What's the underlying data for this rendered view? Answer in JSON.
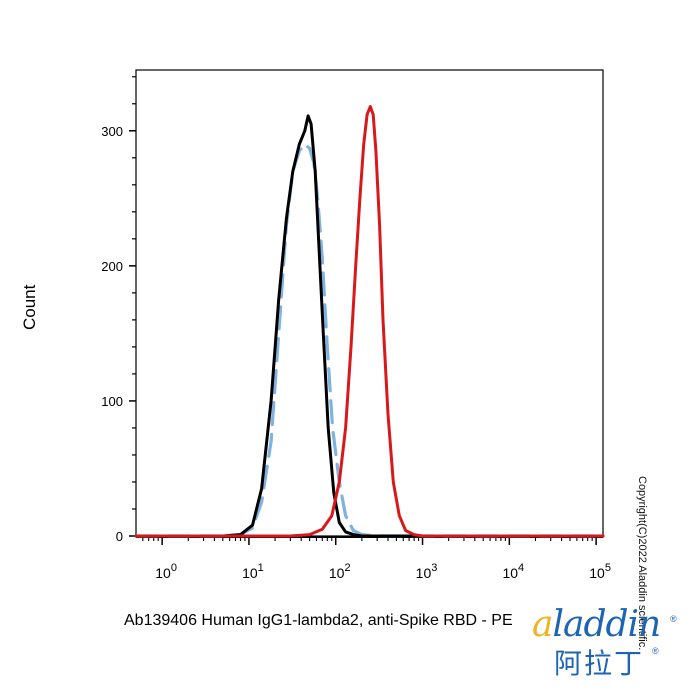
{
  "chart_data": {
    "type": "line",
    "title": "",
    "xlabel": "Ab139406 Human IgG1-lambda2, anti-Spike RBD - PE",
    "ylabel": "Count",
    "x_scale": "log",
    "xlim": [
      0.5,
      120000
    ],
    "ylim": [
      0,
      345
    ],
    "x_ticks": [
      {
        "value": 1,
        "label": "10",
        "exp": "0"
      },
      {
        "value": 10,
        "label": "10",
        "exp": "1"
      },
      {
        "value": 100,
        "label": "10",
        "exp": "2"
      },
      {
        "value": 1000,
        "label": "10",
        "exp": "3"
      },
      {
        "value": 10000,
        "label": "10",
        "exp": "4"
      },
      {
        "value": 100000,
        "label": "10",
        "exp": "5"
      }
    ],
    "y_ticks": [
      0,
      100,
      200,
      300
    ],
    "grid": false,
    "legend": "none",
    "series": [
      {
        "style": "dashed",
        "color": "#7fb2e0",
        "x": [
          0.5,
          5,
          8,
          11,
          14,
          18,
          22,
          27,
          32,
          38,
          44,
          50,
          56,
          62,
          70,
          80,
          92,
          110,
          130,
          160,
          200,
          300,
          1000,
          120000
        ],
        "y": [
          0,
          0,
          1,
          6,
          25,
          70,
          150,
          230,
          270,
          285,
          290,
          287,
          276,
          250,
          205,
          140,
          80,
          40,
          15,
          4,
          1,
          0,
          0,
          0
        ]
      },
      {
        "style": "solid",
        "color": "#000000",
        "x": [
          0.5,
          5,
          8,
          11,
          14,
          18,
          22,
          27,
          32,
          38,
          44,
          48,
          52,
          58,
          64,
          72,
          82,
          95,
          110,
          130,
          160,
          200,
          300,
          1000,
          120000
        ],
        "y": [
          0,
          0,
          1,
          8,
          35,
          100,
          175,
          235,
          270,
          290,
          300,
          311,
          305,
          270,
          215,
          150,
          80,
          32,
          10,
          3,
          1,
          0,
          0,
          0,
          0
        ]
      },
      {
        "style": "solid",
        "color": "#d7191c",
        "x": [
          0.5,
          30,
          50,
          70,
          90,
          110,
          130,
          150,
          170,
          190,
          210,
          230,
          250,
          270,
          290,
          320,
          350,
          400,
          460,
          540,
          640,
          800,
          1000,
          120000
        ],
        "y": [
          0,
          0,
          1,
          5,
          15,
          40,
          80,
          140,
          200,
          250,
          290,
          312,
          318,
          312,
          285,
          230,
          160,
          90,
          40,
          15,
          4,
          1,
          0,
          0
        ]
      }
    ]
  },
  "copyright": "Copyright(C)2022 Aladdin scientific.",
  "logo": {
    "text_a": "a",
    "text_rest": "laddin",
    "registered": "®",
    "chinese": "阿拉丁"
  },
  "colors": {
    "black_series": "#000000",
    "dashed_series": "#7fb2e0",
    "red_series": "#d7191c",
    "logo_blue": "#1e64b4",
    "logo_gold": "#f0b323"
  }
}
